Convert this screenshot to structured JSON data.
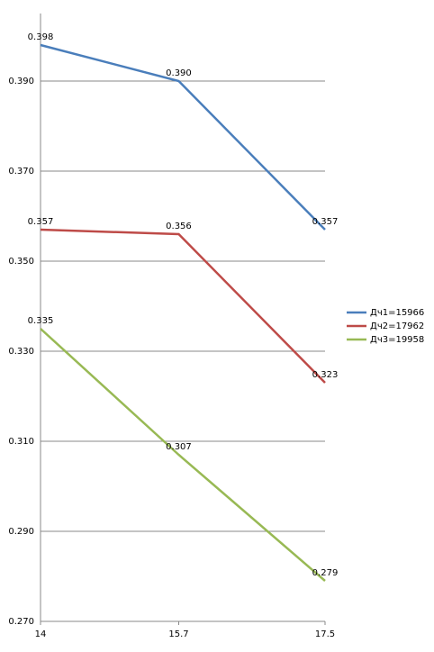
{
  "chart_data": {
    "type": "line",
    "x": [
      14,
      15.7,
      17.5
    ],
    "series": [
      {
        "name": "Дч1=15966",
        "color": "#4a7ebb",
        "values": [
          0.398,
          0.39,
          0.357
        ],
        "value_labels": [
          "0.398",
          "0.390",
          "0.357"
        ]
      },
      {
        "name": "Дч2=17962",
        "color": "#be4b48",
        "values": [
          0.357,
          0.356,
          0.323
        ]
      },
      {
        "name": "Дч3=19958",
        "color": "#98b954",
        "values": [
          0.335,
          0.307,
          0.279
        ]
      }
    ],
    "xlim": [
      14,
      17.5
    ],
    "xticks": [
      14,
      15.7,
      17.5
    ],
    "ylim": [
      0.27,
      0.405
    ],
    "yticks": [
      {
        "value": 0.27,
        "label": "0.270"
      },
      {
        "value": 0.29,
        "label": "0.290"
      },
      {
        "value": 0.31,
        "label": "0.310"
      },
      {
        "value": 0.33,
        "label": "0.330"
      },
      {
        "value": 0.35,
        "label": "0.350"
      },
      {
        "value": 0.37,
        "label": "0.370"
      },
      {
        "value": 0.39,
        "label": "0.390"
      }
    ],
    "grid": true,
    "legend": "right"
  }
}
